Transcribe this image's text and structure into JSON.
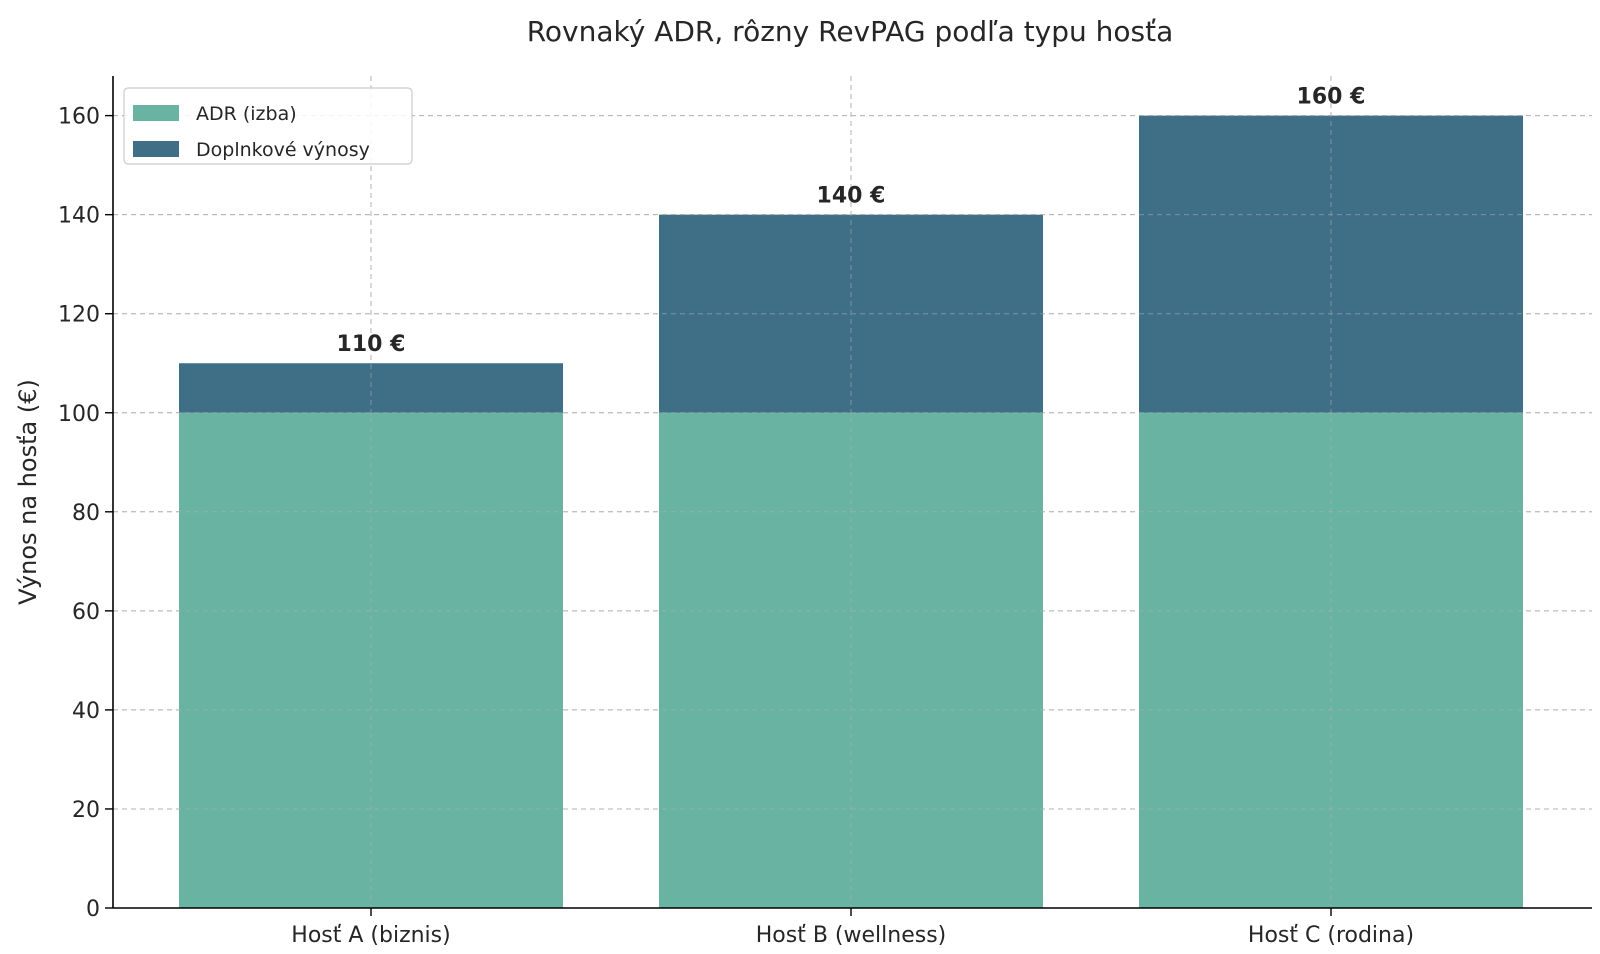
{
  "chart_data": {
    "type": "bar",
    "stacked": true,
    "title": "Rovnaký ADR, rôzny RevPAG podľa typu hosťa",
    "xlabel": "",
    "ylabel": "Výnos na hosťa (€)",
    "categories": [
      "Hosť A (biznis)",
      "Hosť B (wellness)",
      "Hosť C (rodina)"
    ],
    "series": [
      {
        "name": "ADR (izba)",
        "values": [
          100,
          100,
          100
        ],
        "color": "#69b3a2"
      },
      {
        "name": "Doplnkové výnosy",
        "values": [
          10,
          40,
          60
        ],
        "color": "#3f6e87"
      }
    ],
    "totals": [
      110,
      140,
      160
    ],
    "data_labels": [
      "110 €",
      "140 €",
      "160 €"
    ],
    "ylim": [
      0,
      168
    ],
    "yticks": [
      0,
      20,
      40,
      60,
      80,
      100,
      120,
      140,
      160
    ],
    "grid": true,
    "legend_position": "top-left"
  }
}
